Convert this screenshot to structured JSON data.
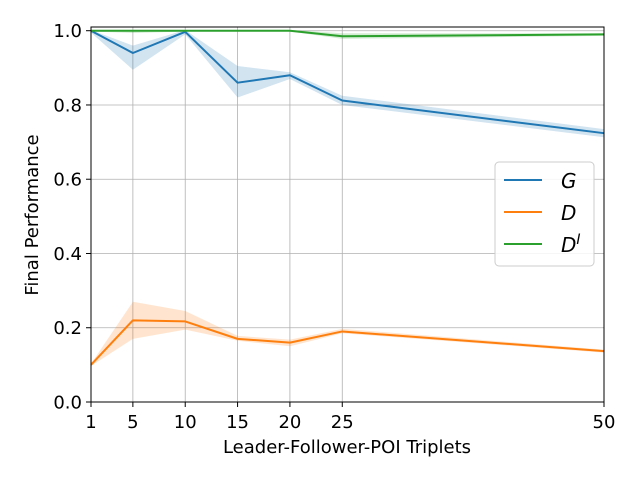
{
  "chart_data": {
    "type": "line",
    "xlabel": "Leader-Follower-POI Triplets",
    "ylabel": "Final Performance",
    "x": [
      1,
      5,
      10,
      15,
      20,
      25,
      50
    ],
    "xticks": [
      "1",
      "5",
      "10",
      "15",
      "20",
      "25",
      "50"
    ],
    "yticks": [
      "0.0",
      "0.2",
      "0.4",
      "0.6",
      "0.8",
      "1.0"
    ],
    "xlim": [
      1,
      50
    ],
    "ylim": [
      0,
      1.01
    ],
    "grid": true,
    "legend_position": "center-right",
    "series": [
      {
        "name": "G",
        "name_sup": "",
        "color": "#1f77b4",
        "values": [
          1.0,
          0.94,
          0.997,
          0.86,
          0.88,
          0.812,
          0.724
        ],
        "lower": [
          0.995,
          0.895,
          0.99,
          0.82,
          0.87,
          0.8,
          0.713
        ],
        "upper": [
          1.002,
          0.96,
          1.002,
          0.905,
          0.888,
          0.825,
          0.735
        ]
      },
      {
        "name": "D",
        "name_sup": "",
        "color": "#ff7f0e",
        "values": [
          0.1,
          0.22,
          0.217,
          0.17,
          0.16,
          0.19,
          0.137
        ],
        "lower": [
          0.097,
          0.17,
          0.195,
          0.165,
          0.15,
          0.185,
          0.133
        ],
        "upper": [
          0.103,
          0.27,
          0.245,
          0.178,
          0.168,
          0.197,
          0.141
        ]
      },
      {
        "name": "D",
        "name_sup": "I",
        "color": "#2ca02c",
        "values": [
          1.0,
          1.0,
          1.0,
          1.0,
          1.0,
          0.985,
          0.99
        ],
        "lower": [
          0.998,
          0.994,
          0.998,
          0.998,
          0.998,
          0.978,
          0.986
        ],
        "upper": [
          1.002,
          1.002,
          1.002,
          1.002,
          1.002,
          0.993,
          0.993
        ]
      }
    ]
  }
}
